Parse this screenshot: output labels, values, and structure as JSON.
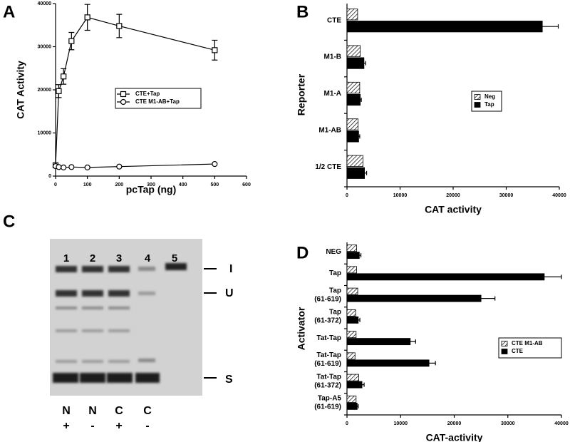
{
  "chart_data": [
    {
      "type": "line",
      "panel": "A",
      "x_label": "pcTap (ng)",
      "y_label": "CAT Activity",
      "x": [
        0,
        10,
        25,
        50,
        100,
        200,
        500
      ],
      "xlim": [
        0,
        600
      ],
      "xticks": [
        0,
        100,
        200,
        300,
        400,
        500,
        600
      ],
      "ylim": [
        0,
        40000
      ],
      "yticks": [
        0,
        10000,
        20000,
        30000,
        40000
      ],
      "series": [
        {
          "name": "CTE+Tap",
          "color": "#000000",
          "marker": "square",
          "values": [
            2500,
            19700,
            23100,
            31300,
            36800,
            34800,
            29200
          ],
          "errors": [
            500,
            1500,
            1800,
            2000,
            3000,
            2700,
            2300
          ]
        },
        {
          "name": "CTE M1-AB+Tap",
          "color": "#000000",
          "marker": "circle",
          "values": [
            2300,
            2100,
            2000,
            2100,
            2000,
            2200,
            2800
          ]
        }
      ]
    },
    {
      "type": "hbar",
      "panel": "B",
      "x_label": "CAT activity",
      "y_label": "Reporter",
      "categories": [
        "CTE",
        "M1-B",
        "M1-A",
        "M1-AB",
        "1/2 CTE"
      ],
      "xlim": [
        0,
        40000
      ],
      "xticks": [
        0,
        10000,
        20000,
        30000,
        40000
      ],
      "series": [
        {
          "name": "Neg",
          "color": "#000000",
          "pattern": "hatch",
          "values": [
            2000,
            2500,
            2400,
            2100,
            3000
          ]
        },
        {
          "name": "Tap",
          "color": "#000000",
          "values": [
            36800,
            3200,
            2500,
            2200,
            3300
          ],
          "errors": [
            3000,
            300,
            200,
            200,
            400
          ]
        }
      ]
    },
    {
      "type": "hbar",
      "panel": "D",
      "x_label": "CAT-activity",
      "y_label": "Activator",
      "categories": [
        [
          "NEG"
        ],
        [
          "Tap"
        ],
        [
          "Tap",
          "(61-619)"
        ],
        [
          "Tap",
          "(61-372)"
        ],
        [
          "Tat-Tap"
        ],
        [
          "Tat-Tap",
          "(61-619)"
        ],
        [
          "Tat-Tap",
          "(61-372)"
        ],
        [
          "Tap-A5",
          "(61-619)"
        ]
      ],
      "xlim": [
        0,
        40000
      ],
      "xticks": [
        0,
        10000,
        20000,
        30000,
        40000
      ],
      "series": [
        {
          "name": "CTE M1-AB",
          "color": "#000000",
          "pattern": "hatch",
          "values": [
            1800,
            1800,
            2000,
            1600,
            1700,
            1500,
            2200,
            1700
          ]
        },
        {
          "name": "CTE",
          "color": "#000000",
          "values": [
            2300,
            36800,
            25000,
            2100,
            11800,
            15300,
            2800,
            1900
          ],
          "errors": [
            300,
            3200,
            2600,
            300,
            1000,
            1200,
            400,
            200
          ]
        }
      ]
    }
  ],
  "gel": {
    "panel": "C",
    "lanes": [
      "1",
      "2",
      "3",
      "4",
      "5"
    ],
    "bands": [
      "I",
      "U",
      "S"
    ],
    "bottom": [
      "N",
      "N",
      "C",
      "C"
    ],
    "signs": [
      "+",
      "-",
      "+",
      "-"
    ]
  }
}
